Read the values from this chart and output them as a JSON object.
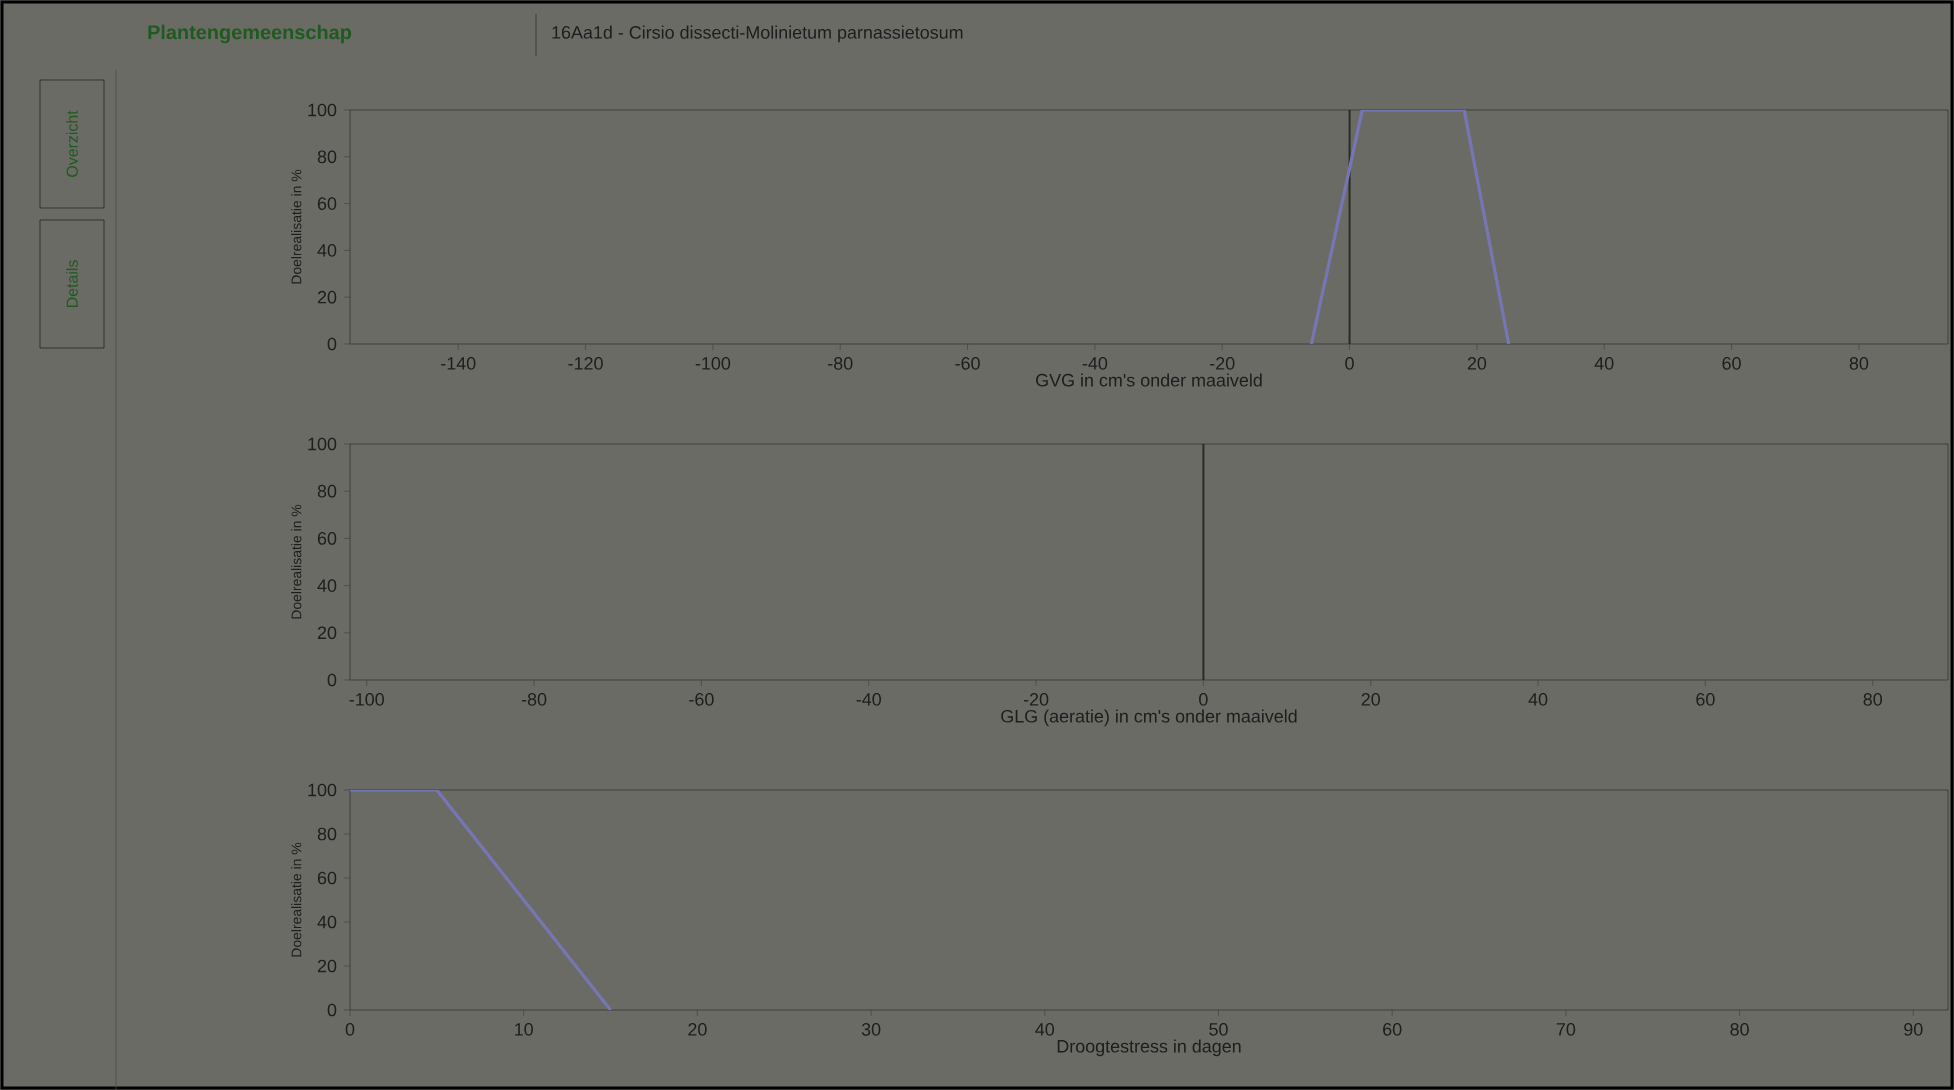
{
  "chart_data": [
    {
      "type": "other",
      "title": "Plantengemeenschap",
      "subtitle": "16Aa1d - Cirsio dissecti-Molinietum parnassietosum",
      "annotations": [
        "Overzicht",
        "Details"
      ]
    },
    {
      "type": "line",
      "xlabel": "GVG in cm's onder maaiveld",
      "ylabel": "Doelrealisatie in %",
      "xlim": [
        -157,
        94
      ],
      "ylim": [
        0,
        100
      ],
      "xticks": [
        -140,
        -120,
        -100,
        -80,
        -60,
        -40,
        -20,
        0,
        20,
        40,
        60,
        80
      ],
      "yticks": [
        0,
        20,
        40,
        60,
        80,
        100
      ],
      "series": [
        {
          "color": "#7676b4",
          "x": [
            -6,
            2,
            18,
            25
          ],
          "values": [
            0,
            100,
            100,
            0
          ]
        }
      ],
      "ref_lines": [
        {
          "axis": "x",
          "value": 0,
          "color": "#2a2a2a"
        }
      ]
    },
    {
      "type": "line",
      "xlabel": "GLG (aeratie) in cm's onder maaiveld",
      "ylabel": "Doelrealisatie in %",
      "xlim": [
        -102,
        89
      ],
      "ylim": [
        0,
        100
      ],
      "xticks": [
        -100,
        -80,
        -60,
        -40,
        -20,
        0,
        20,
        40,
        60,
        80
      ],
      "yticks": [
        0,
        20,
        40,
        60,
        80,
        100
      ],
      "ref_lines": [
        {
          "axis": "x",
          "value": 0,
          "color": "#2a2a2a"
        }
      ]
    },
    {
      "type": "line",
      "xlabel": "Droogtestress in dagen",
      "ylabel": "Doelrealisatie in %",
      "xlim": [
        0,
        92
      ],
      "ylim": [
        0,
        100
      ],
      "xticks": [
        0,
        10,
        20,
        30,
        40,
        50,
        60,
        70,
        80,
        90
      ],
      "yticks": [
        0,
        20,
        40,
        60,
        80,
        100
      ],
      "series": [
        {
          "color": "#7676b4",
          "x": [
            0,
            5,
            15
          ],
          "values": [
            100,
            100,
            0
          ]
        }
      ]
    }
  ]
}
